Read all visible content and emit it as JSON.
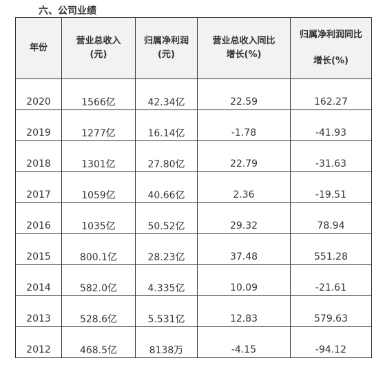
{
  "section_title": "六、公司业绩",
  "table": {
    "headers": {
      "year": "年份",
      "revenue_line1": "营业总收入",
      "revenue_line2": "(元)",
      "profit_line1": "归属净利润",
      "profit_line2": "(元)",
      "revenue_yoy_line1": "营业总收入同比",
      "revenue_yoy_line2": "增长(%)",
      "profit_yoy_line1": "归属净利润同比",
      "profit_yoy_line2": "增长(%)"
    },
    "rows": [
      {
        "year": "2020",
        "revenue": "1566亿",
        "profit": "42.34亿",
        "revenue_yoy": "22.59",
        "profit_yoy": "162.27"
      },
      {
        "year": "2019",
        "revenue": "1277亿",
        "profit": "16.14亿",
        "revenue_yoy": "-1.78",
        "profit_yoy": "-41.93"
      },
      {
        "year": "2018",
        "revenue": "1301亿",
        "profit": "27.80亿",
        "revenue_yoy": "22.79",
        "profit_yoy": "-31.63"
      },
      {
        "year": "2017",
        "revenue": "1059亿",
        "profit": "40.66亿",
        "revenue_yoy": "2.36",
        "profit_yoy": "-19.51"
      },
      {
        "year": "2016",
        "revenue": "1035亿",
        "profit": "50.52亿",
        "revenue_yoy": "29.32",
        "profit_yoy": "78.94"
      },
      {
        "year": "2015",
        "revenue": "800.1亿",
        "profit": "28.23亿",
        "revenue_yoy": "37.48",
        "profit_yoy": "551.28"
      },
      {
        "year": "2014",
        "revenue": "582.0亿",
        "profit": "4.335亿",
        "revenue_yoy": "10.09",
        "profit_yoy": "-21.61"
      },
      {
        "year": "2013",
        "revenue": "528.6亿",
        "profit": "5.531亿",
        "revenue_yoy": "12.83",
        "profit_yoy": "579.63"
      },
      {
        "year": "2012",
        "revenue": "468.5亿",
        "profit": "8138万",
        "revenue_yoy": "-4.15",
        "profit_yoy": "-94.12"
      }
    ]
  }
}
